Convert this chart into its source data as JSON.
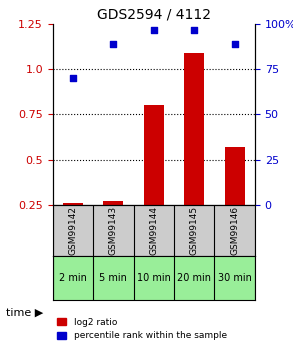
{
  "title": "GDS2594 / 4112",
  "samples": [
    "GSM99142",
    "GSM99143",
    "GSM99144",
    "GSM99145",
    "GSM99146"
  ],
  "time_labels": [
    "2 min",
    "5 min",
    "10 min",
    "20 min",
    "30 min"
  ],
  "log2_ratio": [
    0.26,
    0.27,
    0.8,
    1.09,
    0.57
  ],
  "percentile_rank": [
    70,
    89,
    97,
    97,
    89
  ],
  "bar_color": "#cc0000",
  "dot_color": "#0000cc",
  "left_ylim": [
    0.25,
    1.25
  ],
  "right_ylim": [
    0,
    100
  ],
  "left_yticks": [
    0.25,
    0.5,
    0.75,
    1.0,
    1.25
  ],
  "right_yticks": [
    0,
    25,
    50,
    75,
    100
  ],
  "right_yticklabels": [
    "0",
    "25",
    "50",
    "75",
    "100%"
  ],
  "dotted_lines": [
    0.5,
    0.75,
    1.0
  ],
  "sample_bg_color": "#cccccc",
  "time_bg_color": "#99ee99",
  "legend_red_label": "log2 ratio",
  "legend_blue_label": "percentile rank within the sample",
  "background_color": "#ffffff"
}
